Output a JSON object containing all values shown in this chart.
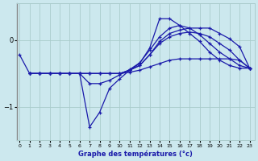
{
  "xlabel": "Graphe des températures (°c)",
  "background_color": "#cce8ee",
  "grid_color": "#aacccc",
  "line_color": "#1a1aaa",
  "x_ticks": [
    0,
    1,
    2,
    3,
    4,
    5,
    6,
    7,
    8,
    9,
    10,
    11,
    12,
    13,
    14,
    15,
    16,
    17,
    18,
    19,
    20,
    21,
    22,
    23
  ],
  "y_ticks": [
    -1,
    0
  ],
  "xlim": [
    -0.3,
    23.5
  ],
  "ylim": [
    -1.5,
    0.55
  ],
  "lines": [
    {
      "x": [
        0,
        1,
        2,
        3,
        4,
        5,
        6,
        7,
        8,
        9,
        10,
        11,
        12,
        13,
        14,
        15,
        16,
        17,
        18,
        19,
        20,
        21,
        22,
        23
      ],
      "y": [
        -0.22,
        -0.5,
        -0.5,
        -0.5,
        -0.5,
        -0.5,
        -0.5,
        -1.3,
        -1.08,
        -0.72,
        -0.58,
        -0.45,
        -0.35,
        -0.12,
        0.32,
        0.32,
        0.22,
        0.1,
        -0.02,
        -0.18,
        -0.3,
        -0.38,
        -0.42,
        -0.42
      ]
    },
    {
      "x": [
        1,
        2,
        3,
        4,
        5,
        6,
        7,
        8,
        9,
        10,
        11,
        12,
        13,
        14,
        15,
        16,
        17,
        18,
        19,
        20,
        21,
        22,
        23
      ],
      "y": [
        -0.5,
        -0.5,
        -0.5,
        -0.5,
        -0.5,
        -0.5,
        -0.5,
        -0.5,
        -0.5,
        -0.5,
        -0.45,
        -0.38,
        -0.22,
        -0.02,
        0.1,
        0.15,
        0.18,
        0.18,
        0.18,
        0.1,
        0.02,
        -0.1,
        -0.42
      ]
    },
    {
      "x": [
        1,
        2,
        3,
        4,
        5,
        6,
        7,
        8,
        9,
        10,
        11,
        12,
        13,
        14,
        15,
        16,
        17,
        18,
        19,
        20,
        21,
        22,
        23
      ],
      "y": [
        -0.5,
        -0.5,
        -0.5,
        -0.5,
        -0.5,
        -0.5,
        -0.5,
        -0.5,
        -0.5,
        -0.5,
        -0.45,
        -0.38,
        -0.22,
        -0.05,
        0.05,
        0.1,
        0.12,
        0.1,
        0.05,
        -0.05,
        -0.15,
        -0.3,
        -0.42
      ]
    },
    {
      "x": [
        1,
        2,
        3,
        4,
        5,
        6,
        7,
        8,
        9,
        10,
        11,
        12,
        13,
        14,
        15,
        16,
        17,
        18,
        19,
        20,
        21,
        22,
        23
      ],
      "y": [
        -0.5,
        -0.5,
        -0.5,
        -0.5,
        -0.5,
        -0.5,
        -0.5,
        -0.5,
        -0.5,
        -0.5,
        -0.48,
        -0.45,
        -0.4,
        -0.35,
        -0.3,
        -0.28,
        -0.28,
        -0.28,
        -0.28,
        -0.28,
        -0.28,
        -0.3,
        -0.42
      ]
    },
    {
      "x": [
        1,
        2,
        3,
        4,
        5,
        6,
        7,
        8,
        9,
        10,
        11,
        12,
        13,
        14,
        15,
        16,
        17,
        18,
        19,
        20,
        21,
        22,
        23
      ],
      "y": [
        -0.5,
        -0.5,
        -0.5,
        -0.5,
        -0.5,
        -0.5,
        -0.65,
        -0.65,
        -0.6,
        -0.52,
        -0.44,
        -0.34,
        -0.15,
        0.05,
        0.18,
        0.22,
        0.18,
        0.08,
        -0.05,
        -0.18,
        -0.28,
        -0.38,
        -0.42
      ]
    }
  ]
}
